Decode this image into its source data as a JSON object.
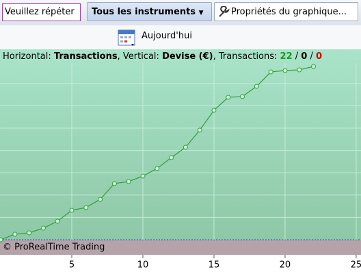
{
  "toolbar": {
    "search": "Veuillez répéter",
    "instruments": "Tous les instruments",
    "properties": "Propriétés du graphique...",
    "today": "Aujourd'hui"
  },
  "chart_data": {
    "type": "line",
    "info": {
      "horizontal_label": "Horizontal:",
      "horizontal": "Transactions",
      "vertical_label": ", Vertical:",
      "vertical": "Devise (€)",
      "count_label": ", Transactions:",
      "winners": 22,
      "neutral": 0,
      "losers": 0
    },
    "watermark": "© ProRealTime Trading",
    "x": [
      0,
      1,
      2,
      3,
      4,
      5,
      6,
      7,
      8,
      9,
      10,
      11,
      12,
      13,
      14,
      15,
      16,
      17,
      18,
      19,
      20,
      21,
      22
    ],
    "values": [
      0,
      8,
      10,
      17,
      27,
      43,
      47,
      59,
      82,
      85,
      93,
      104,
      120,
      135,
      160,
      189,
      208,
      209,
      224,
      245,
      247,
      248,
      253
    ],
    "color": "#3aa040",
    "xlim": [
      0,
      25.34
    ],
    "xticks": [
      5,
      10,
      15,
      20,
      25
    ],
    "ylim": [
      0,
      278
    ]
  }
}
